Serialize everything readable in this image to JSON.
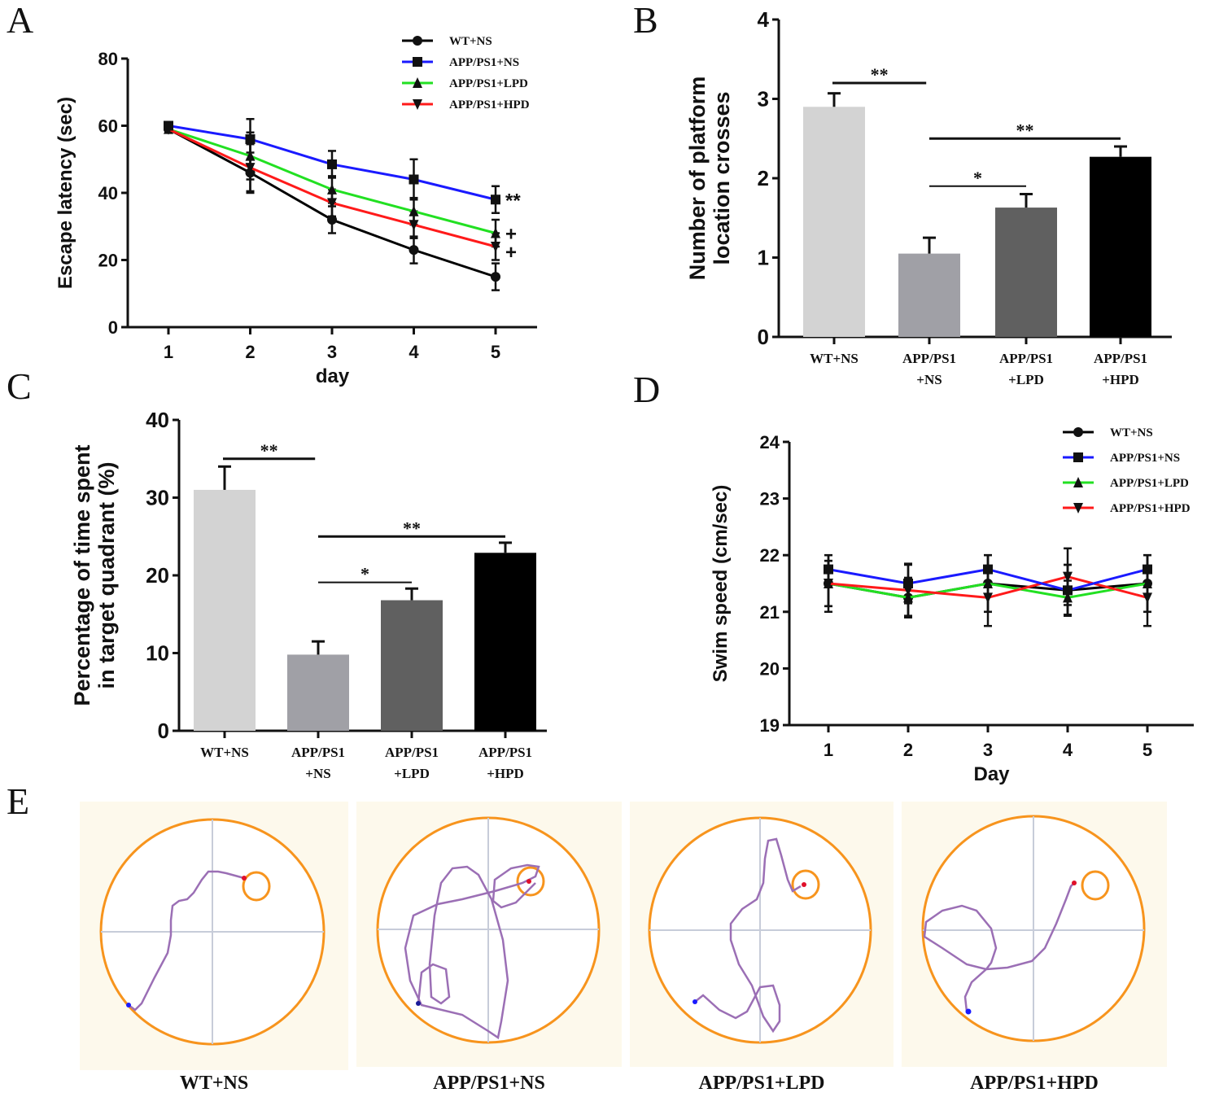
{
  "panels": {
    "A": "A",
    "B": "B",
    "C": "C",
    "D": "D",
    "E": "E"
  },
  "colors": {
    "WT+NS": "#000000",
    "APP/PS1+NS": "#1a1aff",
    "APP/PS1+LPD": "#22e022",
    "APP/PS1+HPD": "#ff1a1a",
    "maze_ring": "#f7941d",
    "path": "#9b6fb5",
    "maze_bg": "#fdf9ec"
  },
  "chart_data": [
    {
      "id": "A",
      "type": "line",
      "title": "",
      "xlabel": "day",
      "ylabel": "Escape latency (sec)",
      "x": [
        1,
        2,
        3,
        4,
        5
      ],
      "ylim": [
        0,
        80
      ],
      "yticks": [
        0,
        20,
        40,
        60,
        80
      ],
      "legend": "top-right",
      "series": [
        {
          "name": "WT+NS",
          "marker": "circle",
          "values": [
            59,
            46,
            32,
            23,
            15
          ],
          "errors": [
            1,
            6,
            4,
            4,
            4
          ]
        },
        {
          "name": "APP/PS1+NS",
          "marker": "square",
          "values": [
            60,
            56,
            48.5,
            44,
            38
          ],
          "errors": [
            1,
            6,
            4,
            6,
            4
          ]
        },
        {
          "name": "APP/PS1+LPD",
          "marker": "triangle-up",
          "values": [
            59,
            51,
            41,
            34.5,
            28
          ],
          "errors": [
            1,
            7,
            4,
            4,
            4
          ]
        },
        {
          "name": "APP/PS1+HPD",
          "marker": "triangle-down",
          "values": [
            59,
            47.5,
            37,
            30.5,
            24
          ],
          "errors": [
            1,
            7,
            4,
            4,
            4
          ]
        }
      ],
      "annotations": [
        {
          "series": "APP/PS1+NS",
          "x": 5,
          "text": "**"
        },
        {
          "series": "APP/PS1+LPD",
          "x": 5,
          "text": "+"
        },
        {
          "series": "APP/PS1+HPD",
          "x": 5,
          "text": "+"
        }
      ]
    },
    {
      "id": "B",
      "type": "bar",
      "title": "",
      "ylabel": "Number of platform location crosses",
      "categories": [
        "WT+NS",
        "APP/PS1 +NS",
        "APP/PS1 +LPD",
        "APP/PS1 +HPD"
      ],
      "category_lines": [
        [
          "WT+NS"
        ],
        [
          "APP/PS1",
          "+NS"
        ],
        [
          "APP/PS1",
          "+LPD"
        ],
        [
          "APP/PS1",
          "+HPD"
        ]
      ],
      "values": [
        2.9,
        1.05,
        1.63,
        2.27
      ],
      "errors": [
        0.17,
        0.2,
        0.17,
        0.13
      ],
      "bar_colors": [
        "#d3d3d3",
        "#a0a0a6",
        "#606060",
        "#000000"
      ],
      "ylim": [
        0,
        4
      ],
      "yticks": [
        0,
        1,
        2,
        3,
        4
      ],
      "significance": [
        {
          "from": 0,
          "to": 1,
          "y": 3.2,
          "text": "**"
        },
        {
          "from": 1,
          "to": 2,
          "y": 1.9,
          "text": "*"
        },
        {
          "from": 1,
          "to": 3,
          "y": 2.5,
          "text": "**"
        }
      ]
    },
    {
      "id": "C",
      "type": "bar",
      "title": "",
      "ylabel": "Percentage of time spent in target quadrant (%)",
      "ylabel_lines": [
        "Percentage of time spent",
        "in target quadrant (%)"
      ],
      "categories": [
        "WT+NS",
        "APP/PS1 +NS",
        "APP/PS1 +LPD",
        "APP/PS1 +HPD"
      ],
      "category_lines": [
        [
          "WT+NS"
        ],
        [
          "APP/PS1",
          "+NS"
        ],
        [
          "APP/PS1",
          "+LPD"
        ],
        [
          "APP/PS1",
          "+HPD"
        ]
      ],
      "values": [
        31,
        9.8,
        16.8,
        22.9
      ],
      "errors": [
        3,
        1.7,
        1.5,
        1.3
      ],
      "bar_colors": [
        "#d3d3d3",
        "#a0a0a6",
        "#606060",
        "#000000"
      ],
      "ylim": [
        0,
        40
      ],
      "yticks": [
        0,
        10,
        20,
        30,
        40
      ],
      "significance": [
        {
          "from": 0,
          "to": 1,
          "y": 35,
          "text": "**"
        },
        {
          "from": 1,
          "to": 2,
          "y": 19.1,
          "text": "*"
        },
        {
          "from": 1,
          "to": 3,
          "y": 25,
          "text": "**"
        }
      ]
    },
    {
      "id": "D",
      "type": "line",
      "title": "",
      "xlabel": "Day",
      "ylabel": "Swim speed (cm/sec)",
      "x": [
        1,
        2,
        3,
        4,
        5
      ],
      "ylim": [
        19,
        24
      ],
      "yticks": [
        19,
        20,
        21,
        22,
        23,
        24
      ],
      "legend": "top-right",
      "series": [
        {
          "name": "WT+NS",
          "marker": "circle",
          "values": [
            21.5,
            21.25,
            21.5,
            21.38,
            21.5
          ],
          "errors": [
            0.5,
            0.35,
            0.5,
            0.45,
            0.5
          ]
        },
        {
          "name": "APP/PS1+NS",
          "marker": "square",
          "values": [
            21.75,
            21.5,
            21.75,
            21.38,
            21.75
          ],
          "errors": [
            0.25,
            0.35,
            0.25,
            0.45,
            0.25
          ]
        },
        {
          "name": "APP/PS1+LPD",
          "marker": "triangle-up",
          "values": [
            21.5,
            21.25,
            21.5,
            21.25,
            21.5
          ],
          "errors": [
            0.4,
            0.35,
            0.5,
            0.3,
            0.5
          ]
        },
        {
          "name": "APP/PS1+HPD",
          "marker": "triangle-down",
          "values": [
            21.5,
            21.38,
            21.25,
            21.62,
            21.25
          ],
          "errors": [
            0.4,
            0.45,
            0.5,
            0.5,
            0.5
          ]
        }
      ]
    }
  ],
  "mazes": [
    {
      "label": "WT+NS"
    },
    {
      "label": "APP/PS1+NS"
    },
    {
      "label": "APP/PS1+LPD"
    },
    {
      "label": "APP/PS1+HPD"
    }
  ]
}
